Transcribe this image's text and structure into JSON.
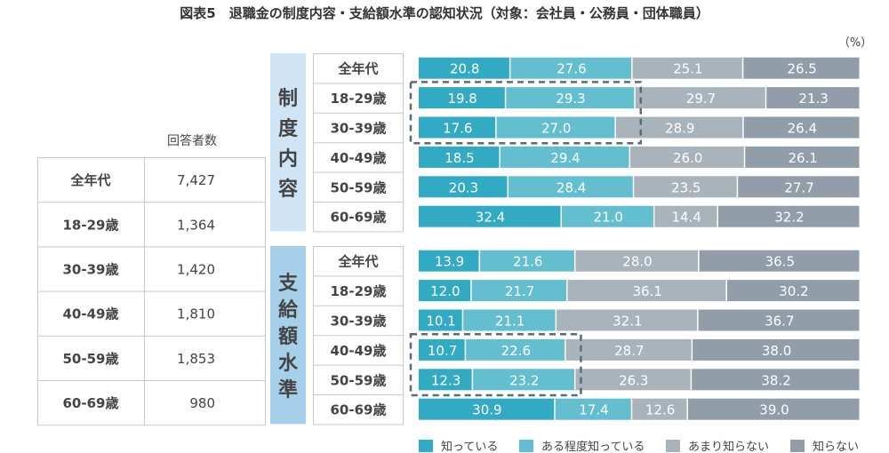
{
  "chart_data": {
    "type": "bar",
    "stacked": true,
    "orientation": "horizontal",
    "title": "図表5　退職金の制度内容・支給額水準の認知状況（対象：会社員・公務員・団体職員）",
    "unit_label": "（%）",
    "xlim": [
      0,
      100
    ],
    "legend_position": "bottom-right",
    "legend": [
      "知っている",
      "ある程度知っている",
      "あまり知らない",
      "知らない"
    ],
    "colors": [
      "#33aac3",
      "#63bed0",
      "#a8b3bb",
      "#919ea9"
    ],
    "groups": [
      {
        "name": "制度内容",
        "color": "#cfe4f4",
        "categories": [
          "全年代",
          "18-29歳",
          "30-39歳",
          "40-49歳",
          "50-59歳",
          "60-69歳"
        ],
        "series": [
          {
            "name": "知っている",
            "values": [
              20.8,
              19.8,
              17.6,
              18.5,
              20.3,
              32.4
            ]
          },
          {
            "name": "ある程度知っている",
            "values": [
              27.6,
              29.3,
              27.0,
              29.4,
              28.4,
              21.0
            ]
          },
          {
            "name": "あまり知らない",
            "values": [
              25.1,
              29.7,
              28.9,
              26.0,
              23.5,
              14.4
            ]
          },
          {
            "name": "知らない",
            "values": [
              26.5,
              21.3,
              26.4,
              26.1,
              27.7,
              32.2
            ]
          }
        ],
        "highlight_rows": [
          1,
          2
        ]
      },
      {
        "name": "支給額水準",
        "color": "#a6cfea",
        "categories": [
          "全年代",
          "18-29歳",
          "30-39歳",
          "40-49歳",
          "50-59歳",
          "60-69歳"
        ],
        "series": [
          {
            "name": "知っている",
            "values": [
              13.9,
              12.0,
              10.1,
              10.7,
              12.3,
              30.9
            ]
          },
          {
            "name": "ある程度知っている",
            "values": [
              21.6,
              21.7,
              21.1,
              22.6,
              23.2,
              17.4
            ]
          },
          {
            "name": "あまり知らない",
            "values": [
              28.0,
              36.1,
              32.1,
              28.7,
              26.3,
              12.6
            ]
          },
          {
            "name": "知らない",
            "values": [
              36.5,
              30.2,
              36.7,
              38.0,
              38.2,
              39.0
            ]
          }
        ],
        "highlight_rows": [
          3,
          4
        ]
      }
    ],
    "respondents_table": {
      "header": "回答者数",
      "rows": [
        {
          "label": "全年代",
          "value": "7,427"
        },
        {
          "label": "18-29歳",
          "value": "1,364"
        },
        {
          "label": "30-39歳",
          "value": "1,420"
        },
        {
          "label": "40-49歳",
          "value": "1,810"
        },
        {
          "label": "50-59歳",
          "value": "1,853"
        },
        {
          "label": "60-69歳",
          "value": "980"
        }
      ]
    }
  }
}
